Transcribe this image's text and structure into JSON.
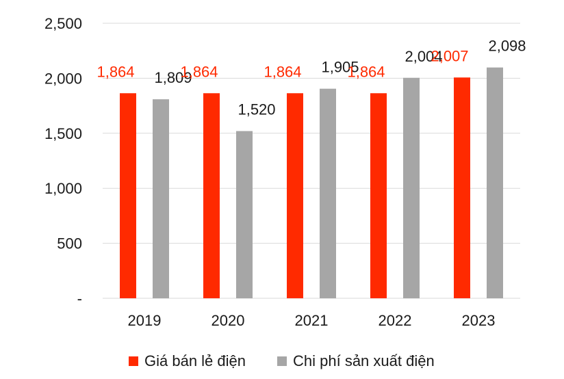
{
  "chart_data": {
    "type": "bar",
    "title": "",
    "xlabel": "",
    "ylabel": "",
    "ylim": [
      0,
      2500
    ],
    "yticks": [
      {
        "value": 0,
        "label": "-"
      },
      {
        "value": 500,
        "label": "500"
      },
      {
        "value": 1000,
        "label": "1,000"
      },
      {
        "value": 1500,
        "label": "1,500"
      },
      {
        "value": 2000,
        "label": "2,000"
      },
      {
        "value": 2500,
        "label": "2,500"
      }
    ],
    "grid": "horizontal",
    "legend_position": "bottom",
    "categories": [
      "2019",
      "2020",
      "2021",
      "2022",
      "2023"
    ],
    "series": [
      {
        "name": "Giá bán lẻ điện",
        "color": "#ff2a00",
        "label_color": "#ff2a00",
        "values": [
          1864,
          1864,
          1864,
          1864,
          2007
        ],
        "labels": [
          "1,864",
          "1,864",
          "1,864",
          "1,864",
          "2,007"
        ]
      },
      {
        "name": "Chi phí sản xuất điện",
        "color": "#a6a6a6",
        "label_color": "#1a1a1a",
        "values": [
          1809,
          1520,
          1905,
          2004,
          2098
        ],
        "labels": [
          "1,809",
          "1,520",
          "1,905",
          "2,004",
          "2,098"
        ]
      }
    ]
  }
}
